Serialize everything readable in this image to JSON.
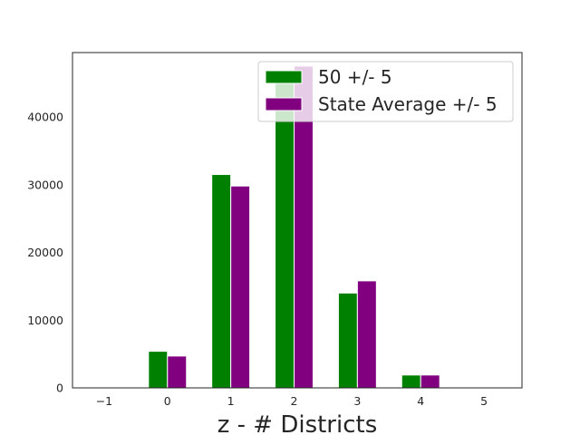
{
  "chart_data": {
    "type": "bar",
    "title": "",
    "xlabel": "z - # Districts",
    "ylabel": "",
    "x_ticks": [
      "−1",
      "0",
      "1",
      "2",
      "3",
      "4",
      "5"
    ],
    "x_tick_values": [
      -1,
      0,
      1,
      2,
      3,
      4,
      5
    ],
    "xlim": [
      -1.5,
      5.6
    ],
    "ylim": [
      0,
      49500
    ],
    "y_ticks": [
      "0",
      "10000",
      "20000",
      "30000",
      "40000"
    ],
    "y_tick_values": [
      0,
      10000,
      20000,
      30000,
      40000
    ],
    "grid": false,
    "legend_position": "top-right",
    "categories": [
      0,
      1,
      2,
      3,
      4
    ],
    "series": [
      {
        "name": "50 +/- 5",
        "color": "#008000",
        "values": [
          5400,
          31500,
          45500,
          14000,
          1900
        ]
      },
      {
        "name": "State Average +/- 5",
        "color": "#800080",
        "values": [
          4700,
          29800,
          47500,
          15800,
          1900
        ]
      }
    ]
  }
}
